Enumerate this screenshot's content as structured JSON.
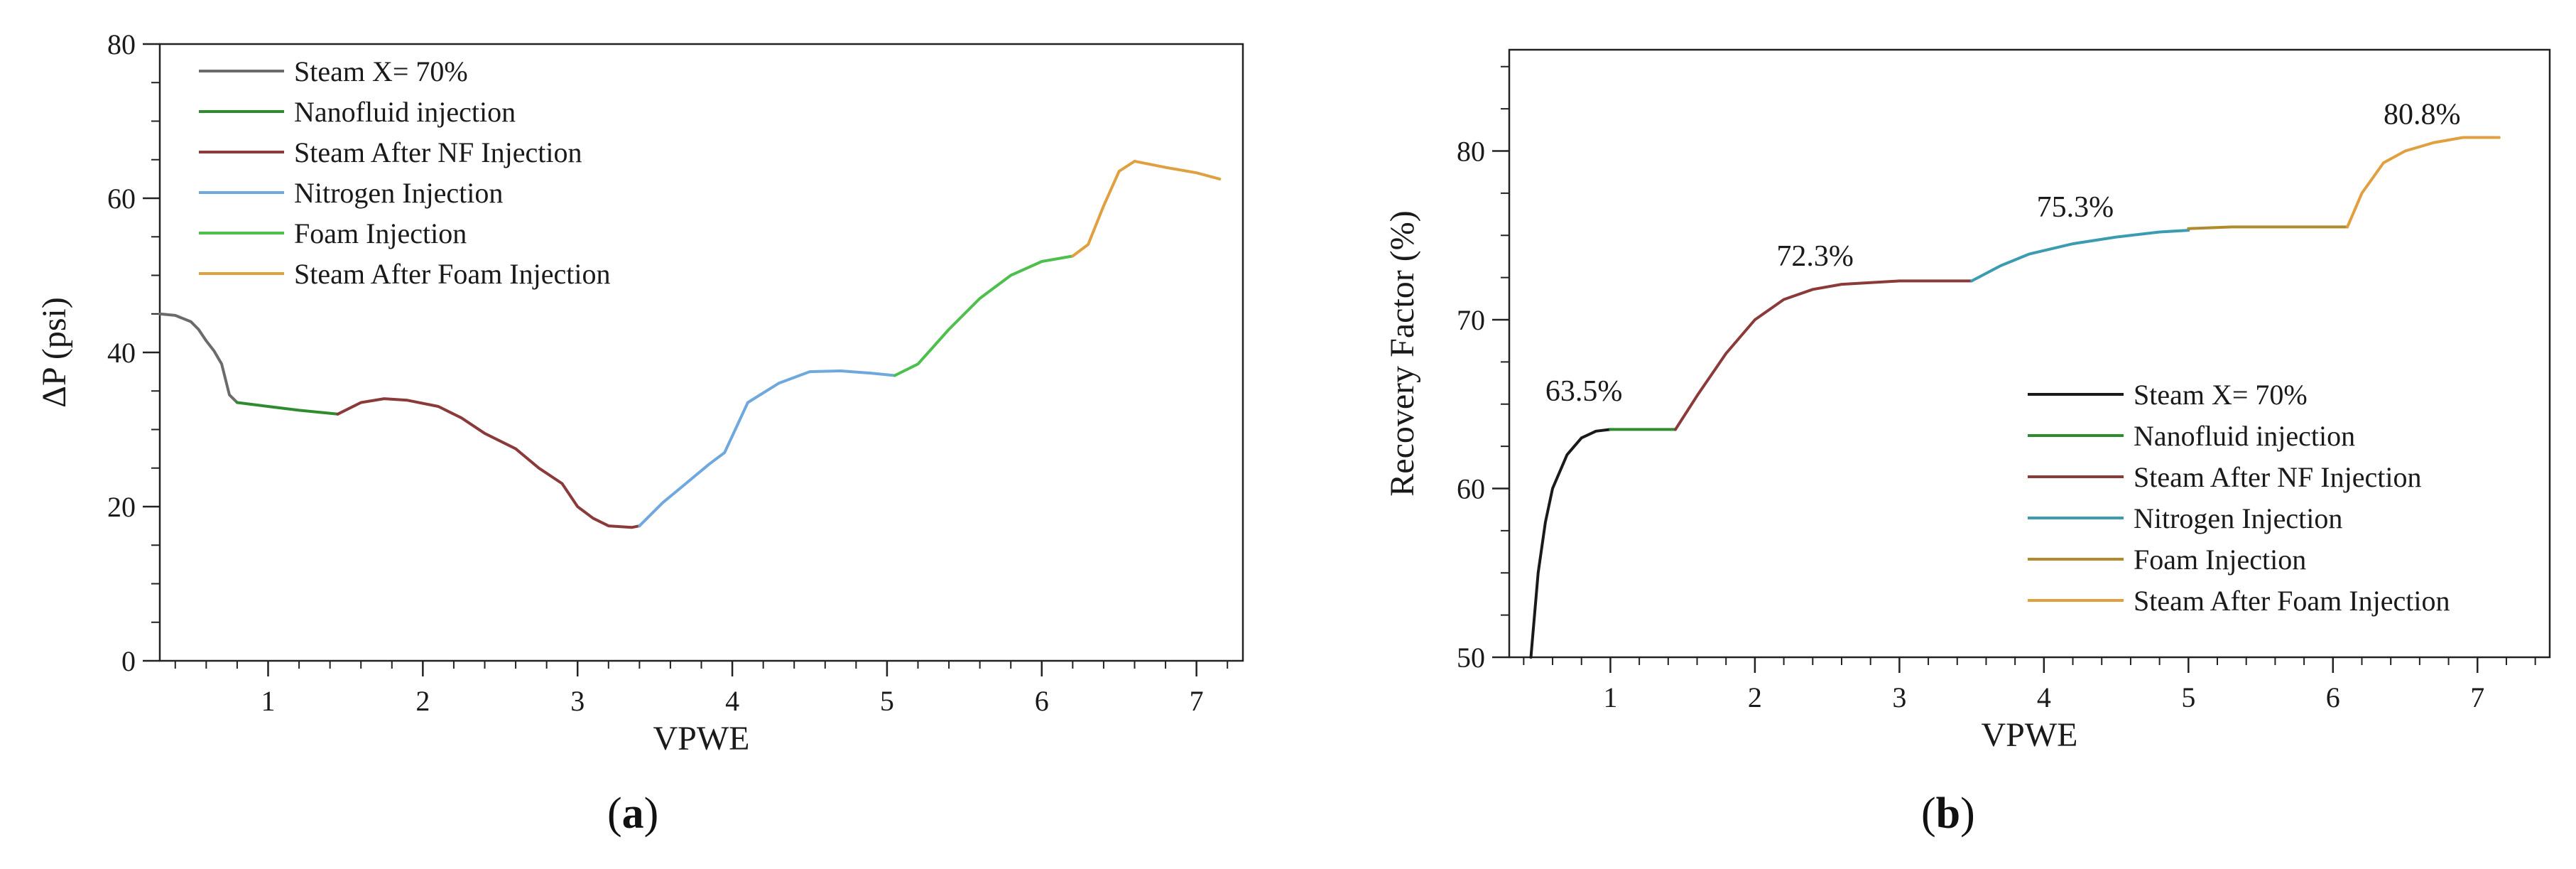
{
  "figure": {
    "panel_labels": [
      {
        "open": "(",
        "letter": "a",
        "close": ")"
      },
      {
        "open": "(",
        "letter": "b",
        "close": ")"
      }
    ]
  },
  "chart_data": [
    {
      "type": "line",
      "title": "",
      "xlabel": "VPWE",
      "ylabel": "ΔP (psi)",
      "xlim": [
        0.3,
        7.3
      ],
      "ylim": [
        0,
        80
      ],
      "xticks": [
        1,
        2,
        3,
        4,
        5,
        6,
        7
      ],
      "yticks": [
        0,
        20,
        40,
        60,
        80
      ],
      "grid": false,
      "legend_position": "top-left",
      "series": [
        {
          "name": "Steam X= 70%",
          "color": "#6b6b6b",
          "x": [
            0.3,
            0.4,
            0.5,
            0.55,
            0.6,
            0.65,
            0.7,
            0.75,
            0.8
          ],
          "y": [
            45,
            44.8,
            44,
            43,
            41.5,
            40.2,
            38.5,
            34.5,
            33.5
          ]
        },
        {
          "name": "Nanofluid injection",
          "color": "#2e8b2e",
          "x": [
            0.8,
            1.0,
            1.2,
            1.45
          ],
          "y": [
            33.5,
            33.0,
            32.5,
            32.0
          ]
        },
        {
          "name": "Steam After NF Injection",
          "color": "#8b3a3a",
          "x": [
            1.45,
            1.6,
            1.75,
            1.9,
            2.1,
            2.25,
            2.4,
            2.6,
            2.75,
            2.9,
            3.0,
            3.1,
            3.2,
            3.35,
            3.4
          ],
          "y": [
            32.0,
            33.5,
            34.0,
            33.8,
            33.0,
            31.5,
            29.5,
            27.5,
            25.0,
            23.0,
            20.0,
            18.5,
            17.5,
            17.3,
            17.5
          ]
        },
        {
          "name": "Nitrogen Injection",
          "color": "#6fa8dc",
          "x": [
            3.4,
            3.55,
            3.7,
            3.85,
            3.95,
            4.1,
            4.3,
            4.5,
            4.7,
            4.9,
            5.05
          ],
          "y": [
            17.5,
            20.5,
            23.0,
            25.5,
            27.0,
            33.5,
            36.0,
            37.5,
            37.6,
            37.3,
            37.0
          ]
        },
        {
          "name": "Foam Injection",
          "color": "#4cbf4c",
          "x": [
            5.05,
            5.2,
            5.4,
            5.6,
            5.8,
            6.0,
            6.2
          ],
          "y": [
            37.0,
            38.5,
            43.0,
            47.0,
            50.0,
            51.8,
            52.5
          ]
        },
        {
          "name": "Steam After Foam Injection",
          "color": "#e0a040",
          "x": [
            6.2,
            6.3,
            6.4,
            6.5,
            6.6,
            6.8,
            7.0,
            7.15
          ],
          "y": [
            52.5,
            54.0,
            59.0,
            63.5,
            64.8,
            64.0,
            63.3,
            62.5
          ]
        }
      ]
    },
    {
      "type": "line",
      "title": "",
      "xlabel": "VPWE",
      "ylabel": "Recovery Factor (%)",
      "xlim": [
        0.3,
        7.5
      ],
      "ylim": [
        50,
        86
      ],
      "xticks": [
        1,
        2,
        3,
        4,
        5,
        6,
        7
      ],
      "yticks": [
        50,
        60,
        70,
        80
      ],
      "grid": false,
      "legend_position": "bottom-right",
      "annotations": [
        {
          "text": "63.5%",
          "x": 0.55,
          "y": 65.2
        },
        {
          "text": "72.3%",
          "x": 2.15,
          "y": 73.2
        },
        {
          "text": "75.3%",
          "x": 3.95,
          "y": 76.1
        },
        {
          "text": "80.8%",
          "x": 6.35,
          "y": 81.6
        }
      ],
      "series": [
        {
          "name": "Steam X= 70%",
          "color": "#1a1a1a",
          "x": [
            0.45,
            0.5,
            0.55,
            0.6,
            0.7,
            0.8,
            0.9,
            1.0
          ],
          "y": [
            50.0,
            55.0,
            58.0,
            60.0,
            62.0,
            63.0,
            63.4,
            63.5
          ]
        },
        {
          "name": "Nanofluid injection",
          "color": "#2e8b2e",
          "x": [
            1.0,
            1.2,
            1.45
          ],
          "y": [
            63.5,
            63.5,
            63.5
          ]
        },
        {
          "name": "Steam After NF Injection",
          "color": "#8b3a3a",
          "x": [
            1.45,
            1.6,
            1.8,
            2.0,
            2.2,
            2.4,
            2.6,
            2.8,
            3.0,
            3.3,
            3.5
          ],
          "y": [
            63.5,
            65.5,
            68.0,
            70.0,
            71.2,
            71.8,
            72.1,
            72.2,
            72.3,
            72.3,
            72.3
          ]
        },
        {
          "name": "Nitrogen Injection",
          "color": "#3b9bb0",
          "x": [
            3.5,
            3.7,
            3.9,
            4.2,
            4.5,
            4.8,
            5.0
          ],
          "y": [
            72.3,
            73.2,
            73.9,
            74.5,
            74.9,
            75.2,
            75.3
          ]
        },
        {
          "name": "Foam Injection",
          "color": "#b08a2c",
          "x": [
            5.0,
            5.3,
            5.6,
            5.9,
            6.1
          ],
          "y": [
            75.4,
            75.5,
            75.5,
            75.5,
            75.5
          ]
        },
        {
          "name": "Steam After Foam Injection",
          "color": "#e0a040",
          "x": [
            6.1,
            6.2,
            6.35,
            6.5,
            6.7,
            6.9,
            7.15
          ],
          "y": [
            75.5,
            77.5,
            79.3,
            80.0,
            80.5,
            80.8,
            80.8
          ]
        }
      ]
    }
  ]
}
